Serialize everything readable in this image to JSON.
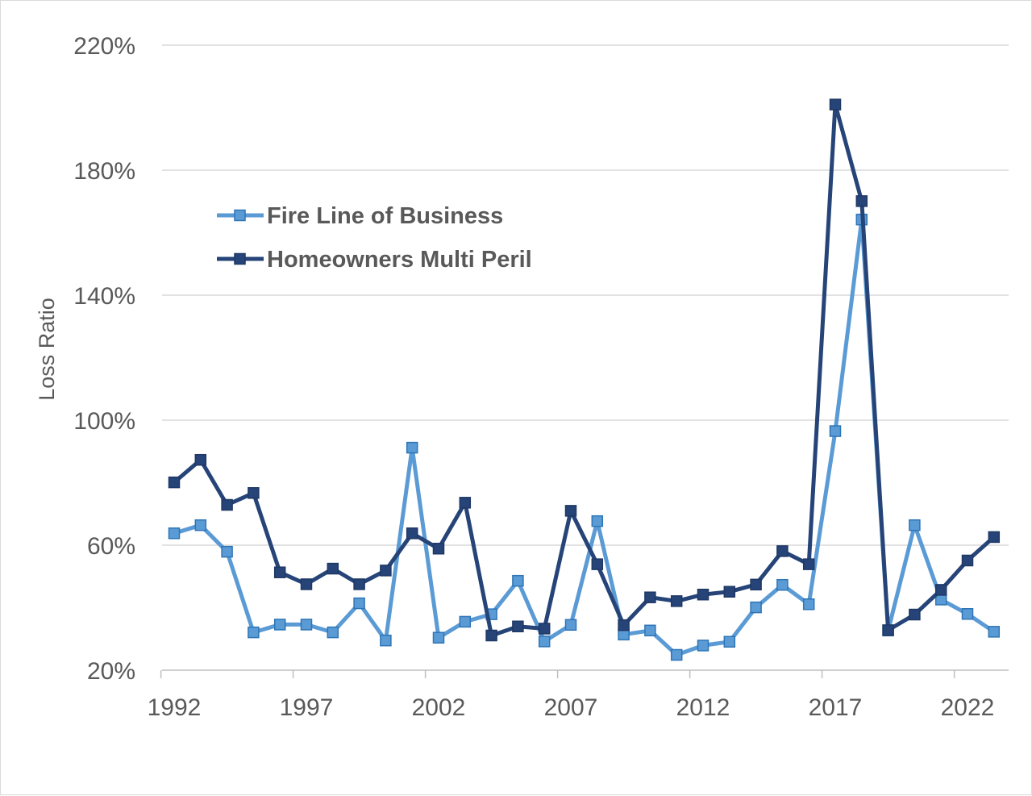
{
  "chart_data": {
    "type": "line",
    "title": "",
    "xlabel": "",
    "ylabel": "Loss Ratio",
    "x": [
      1992,
      1993,
      1994,
      1995,
      1996,
      1997,
      1998,
      1999,
      2000,
      2001,
      2002,
      2003,
      2004,
      2005,
      2006,
      2007,
      2008,
      2009,
      2010,
      2011,
      2012,
      2013,
      2014,
      2015,
      2016,
      2017,
      2018,
      2019,
      2020,
      2021,
      2022,
      2023
    ],
    "x_tick_labels": [
      "1992",
      "1997",
      "2002",
      "2007",
      "2012",
      "2017",
      "2022"
    ],
    "y_tick_labels": [
      "20%",
      "60%",
      "100%",
      "140%",
      "180%",
      "220%"
    ],
    "ylim": [
      20,
      220
    ],
    "y_unit": "%",
    "grid": "horizontal",
    "legend_position": "upper-left",
    "series": [
      {
        "name": "Fire Line of Business",
        "color": "#5b9bd5",
        "marker": "square",
        "values": [
          63.8,
          66.4,
          57.9,
          32.1,
          34.6,
          34.6,
          32.1,
          41.4,
          29.5,
          91.2,
          30.4,
          35.5,
          37.9,
          48.6,
          29.2,
          34.5,
          67.7,
          31.4,
          32.7,
          24.9,
          27.9,
          29.1,
          40.1,
          47.3,
          41.1,
          96.5,
          164.2,
          32.7,
          66.4,
          42.6,
          38.0,
          32.3
        ]
      },
      {
        "name": "Homeowners Multi Peril",
        "color": "#264478",
        "marker": "square",
        "values": [
          80.1,
          87.3,
          72.9,
          76.7,
          51.3,
          47.5,
          52.5,
          47.5,
          51.9,
          63.8,
          58.9,
          73.6,
          31.1,
          34.0,
          33.3,
          71.0,
          53.9,
          34.4,
          43.3,
          42.1,
          44.2,
          45.1,
          47.4,
          58.1,
          53.9,
          201.0,
          170.1,
          32.8,
          37.8,
          45.7,
          55.1,
          62.6
        ]
      }
    ]
  }
}
